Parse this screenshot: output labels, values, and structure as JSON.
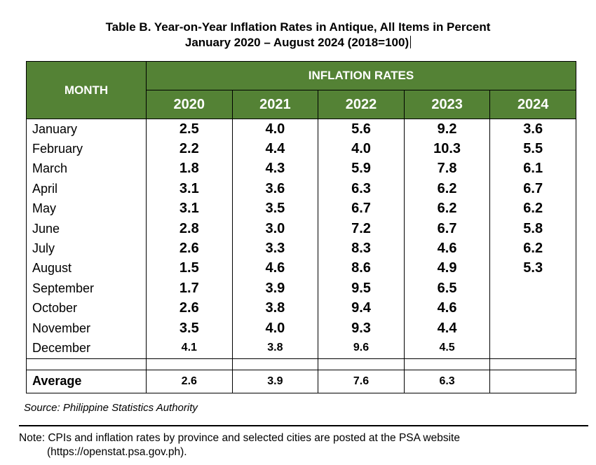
{
  "title_line1": "Table B. Year-on-Year Inflation Rates in Antique, All Items in Percent",
  "title_line2": "January 2020 – August 2024 (2018=100)",
  "header": {
    "month": "MONTH",
    "inflation_rates": "INFLATION RATES",
    "years": [
      "2020",
      "2021",
      "2022",
      "2023",
      "2024"
    ]
  },
  "rows": [
    {
      "month": "January",
      "values": [
        "2.5",
        "4.0",
        "5.6",
        "9.2",
        "3.6"
      ]
    },
    {
      "month": "February",
      "values": [
        "2.2",
        "4.4",
        "4.0",
        "10.3",
        "5.5"
      ]
    },
    {
      "month": "March",
      "values": [
        "1.8",
        "4.3",
        "5.9",
        "7.8",
        "6.1"
      ]
    },
    {
      "month": "April",
      "values": [
        "3.1",
        "3.6",
        "6.3",
        "6.2",
        "6.7"
      ]
    },
    {
      "month": "May",
      "values": [
        "3.1",
        "3.5",
        "6.7",
        "6.2",
        "6.2"
      ]
    },
    {
      "month": "June",
      "values": [
        "2.8",
        "3.0",
        "7.2",
        "6.7",
        "5.8"
      ]
    },
    {
      "month": "July",
      "values": [
        "2.6",
        "3.3",
        "8.3",
        "4.6",
        "6.2"
      ]
    },
    {
      "month": "August",
      "values": [
        "1.5",
        "4.6",
        "8.6",
        "4.9",
        "5.3"
      ]
    },
    {
      "month": "September",
      "values": [
        "1.7",
        "3.9",
        "9.5",
        "6.5",
        ""
      ]
    },
    {
      "month": "October",
      "values": [
        "2.6",
        "3.8",
        "9.4",
        "4.6",
        ""
      ]
    },
    {
      "month": "November",
      "values": [
        "3.5",
        "4.0",
        "9.3",
        "4.4",
        ""
      ]
    },
    {
      "month": "December",
      "values": [
        "4.1",
        "3.8",
        "9.6",
        "4.5",
        ""
      ]
    }
  ],
  "average": {
    "label": "Average",
    "values": [
      "2.6",
      "3.9",
      "7.6",
      "6.3",
      ""
    ]
  },
  "source": "Source: Philippine Statistics Authority",
  "note_line1": "Note: CPIs and inflation rates by province and selected cities are posted at the PSA  website",
  "note_line2": "(https://openstat.psa.gov.ph).",
  "colors": {
    "header_bg": "#548235",
    "header_text": "#ffffff"
  },
  "chart_data": {
    "type": "table",
    "title": "Table B. Year-on-Year Inflation Rates in Antique, All Items in Percent",
    "subtitle": "January 2020 – August 2024 (2018=100)",
    "categories": [
      "January",
      "February",
      "March",
      "April",
      "May",
      "June",
      "July",
      "August",
      "September",
      "October",
      "November",
      "December"
    ],
    "series": [
      {
        "name": "2020",
        "values": [
          2.5,
          2.2,
          1.8,
          3.1,
          3.1,
          2.8,
          2.6,
          1.5,
          1.7,
          2.6,
          3.5,
          4.1
        ]
      },
      {
        "name": "2021",
        "values": [
          4.0,
          4.4,
          4.3,
          3.6,
          3.5,
          3.0,
          3.3,
          4.6,
          3.9,
          3.8,
          4.0,
          3.8
        ]
      },
      {
        "name": "2022",
        "values": [
          5.6,
          4.0,
          5.9,
          6.3,
          6.7,
          7.2,
          8.3,
          8.6,
          9.5,
          9.4,
          9.3,
          9.6
        ]
      },
      {
        "name": "2023",
        "values": [
          9.2,
          10.3,
          7.8,
          6.2,
          6.2,
          6.7,
          4.6,
          4.9,
          6.5,
          4.6,
          4.4,
          4.5
        ]
      },
      {
        "name": "2024",
        "values": [
          3.6,
          5.5,
          6.1,
          6.7,
          6.2,
          5.8,
          6.2,
          5.3,
          null,
          null,
          null,
          null
        ]
      }
    ],
    "average": {
      "2020": 2.6,
      "2021": 3.9,
      "2022": 7.6,
      "2023": 6.3
    }
  }
}
